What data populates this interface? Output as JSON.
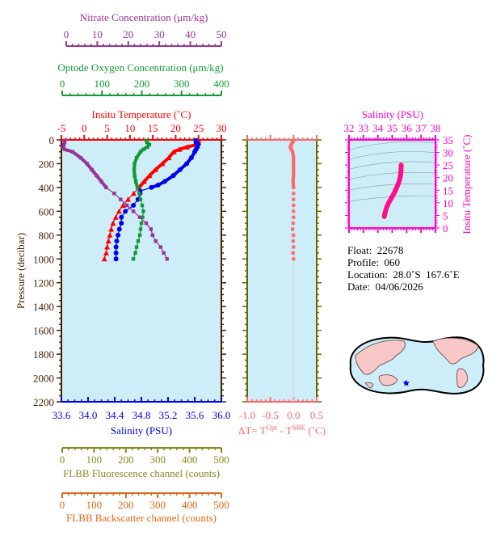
{
  "chart_data": [
    {
      "id": "main-profile",
      "type": "line",
      "title": "Float profile: Temperature, Salinity, Oxygen, Nitrate vs Pressure",
      "ylabel": "Pressure (decibar)",
      "ylim": [
        0,
        2200
      ],
      "y_inverted": true,
      "y_ticks": [
        0,
        200,
        400,
        600,
        800,
        1000,
        1200,
        1400,
        1600,
        1800,
        2000,
        2200
      ],
      "background": "#cdeef8",
      "axes": {
        "nitrate": {
          "label": "Nitrate Concentration (μm/kg)",
          "range": [
            0,
            50
          ],
          "ticks": [
            0,
            10,
            20,
            30,
            40,
            50
          ],
          "color": "#993399"
        },
        "oxygen": {
          "label": "Optode Oxygen Concentration (μm/kg)",
          "range": [
            0,
            400
          ],
          "ticks": [
            0,
            100,
            200,
            300,
            400
          ],
          "color": "#119933"
        },
        "temperature": {
          "label": "Insitu Temperature (˚C)",
          "range": [
            -5,
            30
          ],
          "ticks": [
            -5,
            0,
            5,
            10,
            15,
            20,
            25,
            30
          ],
          "color": "#ff0000"
        },
        "salinity": {
          "label": "Salinity (PSU)",
          "range": [
            33.6,
            36.0
          ],
          "ticks": [
            "33.6",
            "34.0",
            "34.4",
            "34.8",
            "35.2",
            "35.6",
            "36.0"
          ],
          "color": "#0000ee"
        },
        "fluorescence": {
          "label": "FLBB Fluorescence channel (counts)",
          "range": [
            0,
            500
          ],
          "ticks": [
            0,
            100,
            200,
            300,
            400,
            500
          ],
          "color": "#888822"
        },
        "backscatter": {
          "label": "FLBB Backscatter channel (counts)",
          "range": [
            0,
            500
          ],
          "ticks": [
            0,
            100,
            200,
            300,
            400,
            500
          ],
          "color": "#dd6611"
        }
      },
      "series": [
        {
          "name": "Insitu Temperature",
          "axis": "temperature",
          "color": "#ff0000",
          "marker": "triangle",
          "pressure": [
            5,
            20,
            40,
            60,
            80,
            100,
            150,
            200,
            250,
            300,
            350,
            400,
            450,
            500,
            550,
            600,
            650,
            700,
            750,
            800,
            850,
            900,
            950,
            1000
          ],
          "values": [
            25.0,
            25.0,
            24.6,
            22.5,
            20.8,
            19.6,
            18.5,
            17.1,
            15.6,
            14.3,
            13.1,
            12.0,
            10.8,
            9.6,
            8.5,
            7.6,
            6.9,
            6.3,
            5.9,
            5.6,
            5.3,
            5.0,
            4.8,
            4.4
          ]
        },
        {
          "name": "Salinity",
          "axis": "salinity",
          "color": "#0000ee",
          "marker": "circle",
          "pressure": [
            5,
            20,
            40,
            60,
            80,
            100,
            150,
            200,
            250,
            300,
            350,
            380,
            400,
            430,
            450,
            500,
            550,
            600,
            650,
            700,
            750,
            800,
            850,
            900,
            950,
            1000
          ],
          "values": [
            35.62,
            35.62,
            35.65,
            35.64,
            35.62,
            35.6,
            35.55,
            35.48,
            35.38,
            35.28,
            35.15,
            35.05,
            34.95,
            34.78,
            34.78,
            34.75,
            34.68,
            34.56,
            34.5,
            34.5,
            34.47,
            34.45,
            34.43,
            34.42,
            34.42,
            34.42
          ]
        },
        {
          "name": "Optode Oxygen",
          "axis": "oxygen",
          "color": "#119933",
          "marker": "square",
          "pressure": [
            5,
            20,
            40,
            60,
            80,
            100,
            150,
            200,
            250,
            300,
            350,
            400,
            450,
            500,
            550,
            600,
            650,
            700,
            750,
            800,
            850,
            900,
            950,
            1000
          ],
          "values": [
            213,
            214,
            220,
            215,
            205,
            198,
            188,
            183,
            182,
            183,
            186,
            190,
            195,
            198,
            202,
            205,
            203,
            200,
            198,
            196,
            192,
            188,
            185,
            180
          ]
        },
        {
          "name": "Nitrate",
          "axis": "nitrate",
          "color": "#993399",
          "marker": "square",
          "pressure": [
            5,
            20,
            40,
            60,
            80,
            100,
            150,
            200,
            250,
            300,
            350,
            400,
            450,
            500,
            550,
            600,
            650,
            700,
            750,
            800,
            850,
            900,
            950,
            1000
          ],
          "values": [
            1.0,
            1.0,
            0.8,
            0.5,
            1.0,
            3.5,
            6.0,
            8.0,
            9.5,
            11.0,
            12.5,
            14.0,
            16.5,
            18.5,
            20.5,
            22.5,
            24.5,
            26.5,
            28.0,
            28.5,
            29.5,
            31.0,
            32.0,
            33.0
          ]
        }
      ]
    },
    {
      "id": "delta-t",
      "type": "scatter",
      "xlabel": "ΔT= T^Opt - T^SBE (˚C)",
      "xlabel_parts": {
        "prefix": "ΔT= T",
        "sup1": "Opt",
        "mid": " - T",
        "sup2": "SBE",
        "suffix": " (˚C)"
      },
      "xlim": [
        -1.0,
        0.5
      ],
      "x_ticks": [
        "-1.0",
        "-0.5",
        "0.0",
        "0.5"
      ],
      "ylim": [
        0,
        2200
      ],
      "color": "#ff6666",
      "pressure": [
        5,
        20,
        40,
        60,
        80,
        100,
        150,
        200,
        250,
        300,
        350,
        400,
        450,
        500,
        550,
        600,
        650,
        700,
        750,
        800,
        850,
        900,
        950,
        1000
      ],
      "values": [
        0.0,
        -0.02,
        -0.05,
        -0.07,
        -0.05,
        -0.02,
        0.0,
        0.0,
        0.0,
        0.0,
        -0.01,
        0.0,
        0.0,
        0.0,
        0.0,
        0.0,
        0.0,
        -0.01,
        -0.02,
        0.0,
        -0.01,
        0.0,
        -0.01,
        0.0
      ]
    },
    {
      "id": "ts-diagram",
      "type": "line",
      "title": "Salinity (PSU)",
      "xlabel": "Salinity (PSU)",
      "ylabel": "Insitu Temperature (˚C)",
      "xlim": [
        32,
        38
      ],
      "x_ticks": [
        32,
        33,
        34,
        35,
        36,
        37,
        38
      ],
      "ylim": [
        0,
        35
      ],
      "y_ticks": [
        0,
        5,
        10,
        15,
        20,
        25,
        30,
        35
      ],
      "color": "#ff00cc",
      "salinity": [
        34.45,
        34.5,
        34.6,
        34.75,
        34.95,
        35.15,
        35.3,
        35.45,
        35.55,
        35.6,
        35.62,
        35.62
      ],
      "temperature": [
        4.5,
        6.0,
        8.0,
        10.0,
        12.0,
        14.0,
        16.0,
        18.0,
        20.0,
        22.0,
        24.0,
        25.0
      ]
    }
  ],
  "info": {
    "float": "Float:  22678",
    "profile": "Profile:  060",
    "location": "Location:  28.0˚S  167.6˚E",
    "date": "Date:  04/06/2026"
  },
  "map": {
    "description": "World map (Pacific-centered) with float location marker",
    "marker_color": "#0000ff",
    "land_color": "#f8c8c8",
    "ocean_color": "#cdeef8"
  }
}
